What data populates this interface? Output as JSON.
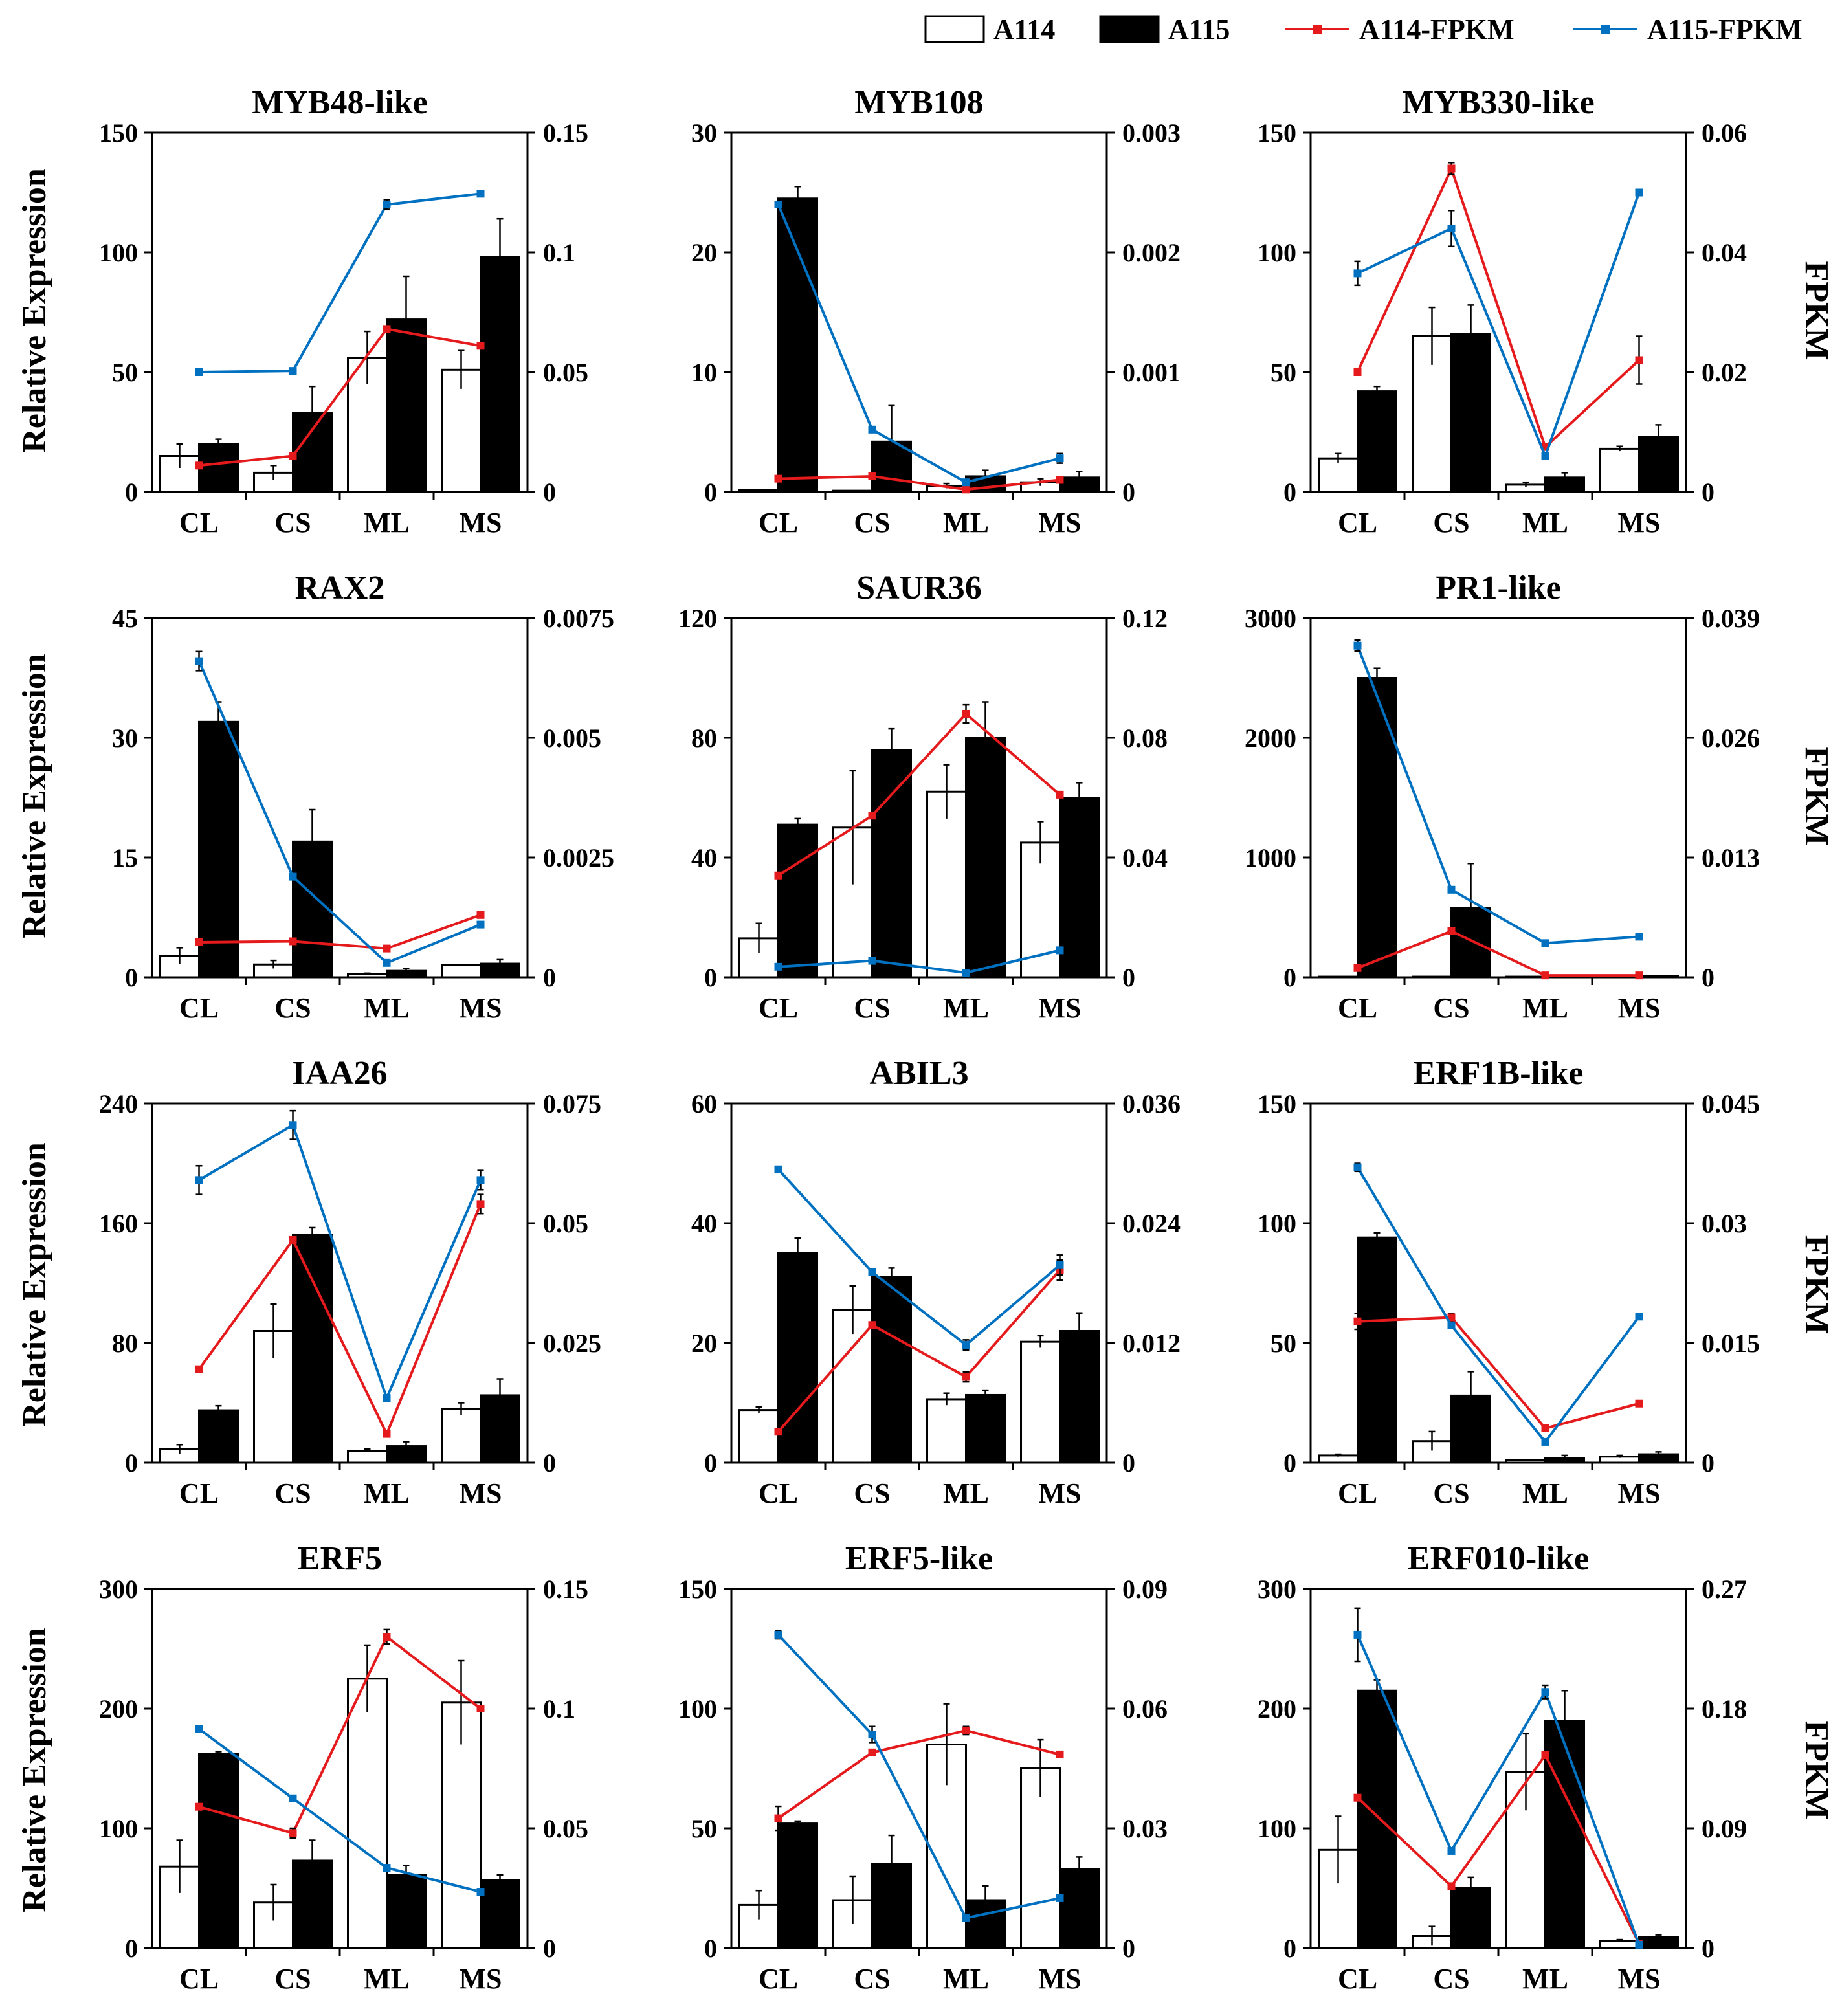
{
  "legend": [
    {
      "label": "A114",
      "kind": "bar",
      "fill": "#ffffff"
    },
    {
      "label": "A115",
      "kind": "bar",
      "fill": "#000000"
    },
    {
      "label": "A114-FPKM",
      "kind": "line",
      "color": "#e41a1c"
    },
    {
      "label": "A115-FPKM",
      "kind": "line",
      "color": "#0070c0"
    }
  ],
  "colors": {
    "a114_line": "#e41a1c",
    "a115_line": "#0070c0",
    "bar_a114": "#ffffff",
    "bar_a115": "#000000",
    "axis": "#000000"
  },
  "axis_titles": {
    "left": "Relative Expression",
    "right": "FPKM"
  },
  "chart_data": [
    {
      "type": "bar",
      "title": "MYB48-like",
      "categories": [
        "CL",
        "CS",
        "ML",
        "MS"
      ],
      "ylim": [
        0,
        150
      ],
      "yticks": [
        0,
        50,
        100,
        150
      ],
      "y2lim": [
        0,
        0.15
      ],
      "y2ticks": [
        "0",
        "0.05",
        "0.1",
        "0.15"
      ],
      "series": [
        {
          "name": "A114",
          "values": [
            15,
            8,
            56,
            51
          ],
          "errors": [
            5,
            3,
            11,
            8
          ]
        },
        {
          "name": "A115",
          "values": [
            20,
            33,
            72,
            98
          ],
          "errors": [
            2,
            11,
            18,
            16
          ]
        },
        {
          "name": "A114-FPKM",
          "axis": "right",
          "values": [
            0.011,
            0.015,
            0.068,
            0.061
          ],
          "errors": [
            0,
            0,
            0.001,
            0
          ]
        },
        {
          "name": "A115-FPKM",
          "axis": "right",
          "values": [
            0.05,
            0.0505,
            0.12,
            0.1245
          ],
          "errors": [
            0,
            0,
            0.002,
            0.001
          ]
        }
      ]
    },
    {
      "type": "bar",
      "title": "MYB108",
      "categories": [
        "CL",
        "CS",
        "ML",
        "MS"
      ],
      "ylim": [
        0,
        30
      ],
      "yticks": [
        0,
        10,
        20,
        30
      ],
      "y2lim": [
        0,
        0.003
      ],
      "y2ticks": [
        "0",
        "0.001",
        "0.002",
        "0.003"
      ],
      "series": [
        {
          "name": "A114",
          "values": [
            0.15,
            0.1,
            0.5,
            0.8
          ],
          "errors": [
            0,
            0,
            0.2,
            0.3
          ]
        },
        {
          "name": "A115",
          "values": [
            24.5,
            4.2,
            1.3,
            1.2
          ],
          "errors": [
            1,
            3,
            0.5,
            0.5
          ]
        },
        {
          "name": "A114-FPKM",
          "axis": "right",
          "values": [
            0.00011,
            0.00013,
            2e-05,
            0.0001
          ],
          "errors": [
            0,
            0,
            0,
            0
          ]
        },
        {
          "name": "A115-FPKM",
          "axis": "right",
          "values": [
            0.0024,
            0.00052,
            8e-05,
            0.00028
          ],
          "errors": [
            0,
            0,
            0,
            4e-05
          ]
        }
      ]
    },
    {
      "type": "bar",
      "title": "MYB330-like",
      "categories": [
        "CL",
        "CS",
        "ML",
        "MS"
      ],
      "ylim": [
        0,
        150
      ],
      "yticks": [
        0,
        50,
        100,
        150
      ],
      "y2lim": [
        0,
        0.06
      ],
      "y2ticks": [
        "0",
        "0.02",
        "0.04",
        "0.06"
      ],
      "series": [
        {
          "name": "A114",
          "values": [
            14,
            65,
            3,
            18
          ],
          "errors": [
            2,
            12,
            1,
            1
          ]
        },
        {
          "name": "A115",
          "values": [
            42,
            66,
            6,
            23
          ],
          "errors": [
            2,
            12,
            2,
            5
          ]
        },
        {
          "name": "A114-FPKM",
          "axis": "right",
          "values": [
            0.02,
            0.054,
            0.0075,
            0.022
          ],
          "errors": [
            0,
            0.001,
            0,
            0.004
          ]
        },
        {
          "name": "A115-FPKM",
          "axis": "right",
          "values": [
            0.0365,
            0.044,
            0.006,
            0.05
          ],
          "errors": [
            0.002,
            0.003,
            0,
            0
          ]
        }
      ]
    },
    {
      "type": "bar",
      "title": "RAX2",
      "categories": [
        "CL",
        "CS",
        "ML",
        "MS"
      ],
      "ylim": [
        0,
        45
      ],
      "yticks": [
        0,
        15,
        30,
        45
      ],
      "y2lim": [
        0,
        0.0075
      ],
      "y2ticks": [
        "0",
        "0.0025",
        "0.005",
        "0.0075"
      ],
      "series": [
        {
          "name": "A114",
          "values": [
            2.7,
            1.6,
            0.4,
            1.5
          ],
          "errors": [
            1,
            0.5,
            0.1,
            0.1
          ]
        },
        {
          "name": "A115",
          "values": [
            32,
            17,
            0.8,
            1.7
          ],
          "errors": [
            2.5,
            4,
            0.3,
            0.5
          ]
        },
        {
          "name": "A114-FPKM",
          "axis": "right",
          "values": [
            0.00073,
            0.00075,
            0.0006,
            0.0013
          ],
          "errors": [
            0,
            0,
            0,
            0
          ]
        },
        {
          "name": "A115-FPKM",
          "axis": "right",
          "values": [
            0.0066,
            0.0021,
            0.0003,
            0.0011
          ],
          "errors": [
            0.0002,
            0,
            0,
            0
          ]
        }
      ]
    },
    {
      "type": "bar",
      "title": "SAUR36",
      "categories": [
        "CL",
        "CS",
        "ML",
        "MS"
      ],
      "ylim": [
        0,
        120
      ],
      "yticks": [
        0,
        40,
        80,
        120
      ],
      "y2lim": [
        0,
        0.12
      ],
      "y2ticks": [
        "0",
        "0.04",
        "0.08",
        "0.12"
      ],
      "series": [
        {
          "name": "A114",
          "values": [
            13,
            50,
            62,
            45
          ],
          "errors": [
            5,
            19,
            9,
            7
          ]
        },
        {
          "name": "A115",
          "values": [
            51,
            76,
            80,
            60
          ],
          "errors": [
            2,
            7,
            12,
            5
          ]
        },
        {
          "name": "A114-FPKM",
          "axis": "right",
          "values": [
            0.034,
            0.054,
            0.088,
            0.061
          ],
          "errors": [
            0,
            0,
            0.003,
            0
          ]
        },
        {
          "name": "A115-FPKM",
          "axis": "right",
          "values": [
            0.0035,
            0.0055,
            0.0015,
            0.009
          ],
          "errors": [
            0,
            0,
            0,
            0
          ]
        }
      ]
    },
    {
      "type": "bar",
      "title": "PR1-like",
      "categories": [
        "CL",
        "CS",
        "ML",
        "MS"
      ],
      "ylim": [
        0,
        3000
      ],
      "yticks": [
        0,
        1000,
        2000,
        3000
      ],
      "y2lim": [
        0,
        0.039
      ],
      "y2ticks": [
        "0",
        "0.013",
        "0.026",
        "0.039"
      ],
      "series": [
        {
          "name": "A114",
          "values": [
            5,
            5,
            5,
            5
          ],
          "errors": [
            0,
            0,
            0,
            0
          ]
        },
        {
          "name": "A115",
          "values": [
            2500,
            580,
            15,
            10
          ],
          "errors": [
            80,
            370,
            0,
            0
          ]
        },
        {
          "name": "A114-FPKM",
          "axis": "right",
          "values": [
            0.001,
            0.005,
            0.0002,
            0.0002
          ],
          "errors": [
            0,
            0,
            0,
            0
          ]
        },
        {
          "name": "A115-FPKM",
          "axis": "right",
          "values": [
            0.036,
            0.0095,
            0.0037,
            0.0044
          ],
          "errors": [
            0.0006,
            0,
            0,
            0
          ]
        }
      ]
    },
    {
      "type": "bar",
      "title": "IAA26",
      "categories": [
        "CL",
        "CS",
        "ML",
        "MS"
      ],
      "ylim": [
        0,
        240
      ],
      "yticks": [
        0,
        80,
        160,
        240
      ],
      "y2lim": [
        0,
        0.075
      ],
      "y2ticks": [
        "0",
        "0.025",
        "0.05",
        "0.075"
      ],
      "series": [
        {
          "name": "A114",
          "values": [
            9,
            88,
            8,
            36
          ],
          "errors": [
            3,
            18,
            1,
            4
          ]
        },
        {
          "name": "A115",
          "values": [
            35,
            152,
            11,
            45
          ],
          "errors": [
            3,
            5,
            3,
            11
          ]
        },
        {
          "name": "A114-FPKM",
          "axis": "right",
          "values": [
            0.0195,
            0.0465,
            0.006,
            0.054
          ],
          "errors": [
            0,
            0,
            0,
            0.002
          ]
        },
        {
          "name": "A115-FPKM",
          "axis": "right",
          "values": [
            0.059,
            0.0705,
            0.0135,
            0.059
          ],
          "errors": [
            0.003,
            0.003,
            0,
            0.002
          ]
        }
      ]
    },
    {
      "type": "bar",
      "title": "ABIL3",
      "categories": [
        "CL",
        "CS",
        "ML",
        "MS"
      ],
      "ylim": [
        0,
        60
      ],
      "yticks": [
        0,
        20,
        40,
        60
      ],
      "y2lim": [
        0,
        0.036
      ],
      "y2ticks": [
        "0",
        "0.012",
        "0.024",
        "0.036"
      ],
      "series": [
        {
          "name": "A114",
          "values": [
            8.8,
            25.5,
            10.6,
            20.2
          ],
          "errors": [
            0.5,
            4,
            1,
            1
          ]
        },
        {
          "name": "A115",
          "values": [
            35,
            31,
            11.3,
            22
          ],
          "errors": [
            2.5,
            1.5,
            0.8,
            3
          ]
        },
        {
          "name": "A114-FPKM",
          "axis": "right",
          "values": [
            0.0031,
            0.0138,
            0.0086,
            0.0193
          ],
          "errors": [
            0,
            0,
            0.0005,
            0.001
          ]
        },
        {
          "name": "A115-FPKM",
          "axis": "right",
          "values": [
            0.0294,
            0.0191,
            0.0118,
            0.0198
          ],
          "errors": [
            0,
            0,
            0.0005,
            0.001
          ]
        }
      ]
    },
    {
      "type": "bar",
      "title": "ERF1B-like",
      "categories": [
        "CL",
        "CS",
        "ML",
        "MS"
      ],
      "ylim": [
        0,
        150
      ],
      "yticks": [
        0,
        50,
        100,
        150
      ],
      "y2lim": [
        0,
        0.045
      ],
      "y2ticks": [
        "0",
        "0.015",
        "0.03",
        "0.045"
      ],
      "series": [
        {
          "name": "A114",
          "values": [
            3,
            9,
            1,
            2.5
          ],
          "errors": [
            0.5,
            4,
            0.2,
            0.5
          ]
        },
        {
          "name": "A115",
          "values": [
            94,
            28,
            2,
            3.5
          ],
          "errors": [
            2,
            10,
            1,
            1
          ]
        },
        {
          "name": "A114-FPKM",
          "axis": "right",
          "values": [
            0.0177,
            0.0182,
            0.0043,
            0.0074
          ],
          "errors": [
            0.001,
            0.0005,
            0,
            0
          ]
        },
        {
          "name": "A115-FPKM",
          "axis": "right",
          "values": [
            0.037,
            0.0172,
            0.0026,
            0.0183
          ],
          "errors": [
            0.0005,
            0,
            0,
            0
          ]
        }
      ]
    },
    {
      "type": "bar",
      "title": "ERF5",
      "categories": [
        "CL",
        "CS",
        "ML",
        "MS"
      ],
      "ylim": [
        0,
        300
      ],
      "yticks": [
        0,
        100,
        200,
        300
      ],
      "y2lim": [
        0,
        0.15
      ],
      "y2ticks": [
        "0",
        "0.05",
        "0.1",
        "0.15"
      ],
      "series": [
        {
          "name": "A114",
          "values": [
            68,
            38,
            225,
            205
          ],
          "errors": [
            22,
            15,
            28,
            35
          ]
        },
        {
          "name": "A115",
          "values": [
            162,
            73,
            61,
            57
          ],
          "errors": [
            2,
            17,
            8,
            4
          ]
        },
        {
          "name": "A114-FPKM",
          "axis": "right",
          "values": [
            0.059,
            0.048,
            0.13,
            0.1
          ],
          "errors": [
            0,
            0.002,
            0.003,
            0
          ]
        },
        {
          "name": "A115-FPKM",
          "axis": "right",
          "values": [
            0.0915,
            0.0625,
            0.0335,
            0.0235
          ],
          "errors": [
            0.001,
            0,
            0,
            0
          ]
        }
      ]
    },
    {
      "type": "bar",
      "title": "ERF5-like",
      "categories": [
        "CL",
        "CS",
        "ML",
        "MS"
      ],
      "ylim": [
        0,
        150
      ],
      "yticks": [
        0,
        50,
        100,
        150
      ],
      "y2lim": [
        0,
        0.09
      ],
      "y2ticks": [
        "0",
        "0.03",
        "0.06",
        "0.09"
      ],
      "series": [
        {
          "name": "A114",
          "values": [
            18,
            20,
            85,
            75
          ],
          "errors": [
            6,
            10,
            17,
            12
          ]
        },
        {
          "name": "A115",
          "values": [
            52,
            35,
            20,
            33
          ],
          "errors": [
            1,
            12,
            6,
            5
          ]
        },
        {
          "name": "A114-FPKM",
          "axis": "right",
          "values": [
            0.0325,
            0.049,
            0.0545,
            0.0485
          ],
          "errors": [
            0.003,
            0,
            0.001,
            0
          ]
        },
        {
          "name": "A115-FPKM",
          "axis": "right",
          "values": [
            0.0785,
            0.0535,
            0.0075,
            0.0125
          ],
          "errors": [
            0.001,
            0.002,
            0,
            0
          ]
        }
      ]
    },
    {
      "type": "bar",
      "title": "ERF010-like",
      "categories": [
        "CL",
        "CS",
        "ML",
        "MS"
      ],
      "ylim": [
        0,
        300
      ],
      "yticks": [
        0,
        100,
        200,
        300
      ],
      "y2lim": [
        0,
        0.27
      ],
      "y2ticks": [
        "0",
        "0.09",
        "0.18",
        "0.27"
      ],
      "series": [
        {
          "name": "A114",
          "values": [
            82,
            10,
            147,
            6
          ],
          "errors": [
            28,
            8,
            32,
            1
          ]
        },
        {
          "name": "A115",
          "values": [
            215,
            50,
            190,
            9
          ],
          "errors": [
            9,
            9,
            25,
            2
          ]
        },
        {
          "name": "A114-FPKM",
          "axis": "right",
          "values": [
            0.113,
            0.0465,
            0.145,
            0.0033
          ],
          "errors": [
            0,
            0,
            0,
            0
          ]
        },
        {
          "name": "A115-FPKM",
          "axis": "right",
          "values": [
            0.2355,
            0.073,
            0.1925,
            0.0025
          ],
          "errors": [
            0.02,
            0,
            0.005,
            0
          ]
        }
      ]
    }
  ]
}
